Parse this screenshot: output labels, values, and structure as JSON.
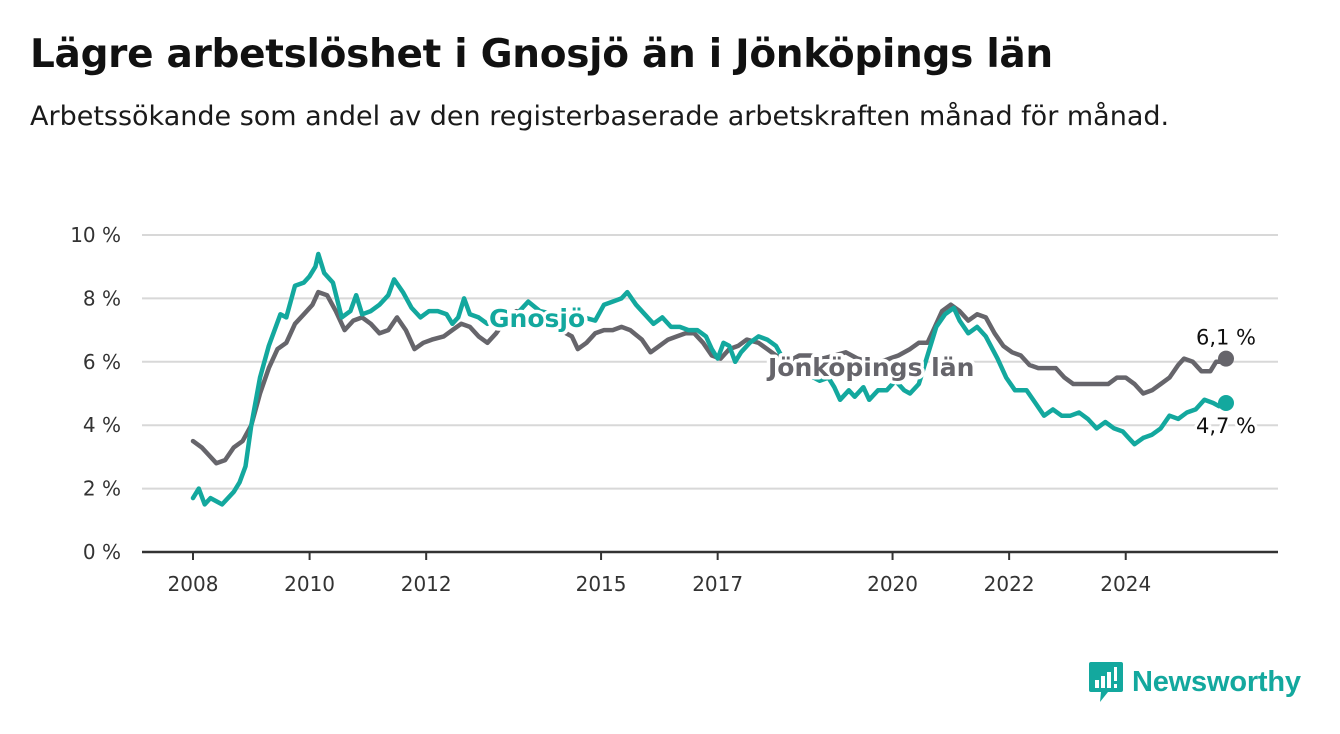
{
  "title": "Lägre arbetslöshet i Gnosjö än i Jönköpings län",
  "subtitle": "Arbetssökande som andel av den registerbaserade arbetskraften månad för månad.",
  "brand": {
    "name": "Newsworthy",
    "logo_icon": "bar-chart-exclamation-icon",
    "color": "#13a89e"
  },
  "chart_data": {
    "type": "line",
    "xlabel": "",
    "ylabel": "",
    "ylim": [
      0,
      10
    ],
    "xlim": [
      2008,
      2025.9
    ],
    "y_ticks": [
      0,
      2,
      4,
      6,
      8,
      10
    ],
    "y_tick_labels": [
      "0 %",
      "2 %",
      "4 %",
      "6 %",
      "8 %",
      "10 %"
    ],
    "x_ticks": [
      2008,
      2010,
      2012,
      2015,
      2017,
      2020,
      2022,
      2024
    ],
    "x_tick_labels": [
      "2008",
      "2010",
      "2012",
      "2015",
      "2017",
      "2020",
      "2022",
      "2024"
    ],
    "grid": true,
    "series": [
      {
        "name": "Gnosjö",
        "color": "#13a89e",
        "end_label": "4,7 %",
        "points": [
          [
            2008.0,
            1.7
          ],
          [
            2008.1,
            2.0
          ],
          [
            2008.2,
            1.5
          ],
          [
            2008.3,
            1.7
          ],
          [
            2008.5,
            1.5
          ],
          [
            2008.7,
            1.9
          ],
          [
            2008.8,
            2.2
          ],
          [
            2008.9,
            2.7
          ],
          [
            2009.0,
            4.0
          ],
          [
            2009.15,
            5.5
          ],
          [
            2009.3,
            6.5
          ],
          [
            2009.5,
            7.5
          ],
          [
            2009.6,
            7.4
          ],
          [
            2009.75,
            8.4
          ],
          [
            2009.9,
            8.5
          ],
          [
            2010.0,
            8.7
          ],
          [
            2010.1,
            9.0
          ],
          [
            2010.15,
            9.4
          ],
          [
            2010.25,
            8.8
          ],
          [
            2010.4,
            8.5
          ],
          [
            2010.55,
            7.4
          ],
          [
            2010.7,
            7.6
          ],
          [
            2010.8,
            8.1
          ],
          [
            2010.9,
            7.5
          ],
          [
            2011.05,
            7.6
          ],
          [
            2011.2,
            7.8
          ],
          [
            2011.35,
            8.1
          ],
          [
            2011.45,
            8.6
          ],
          [
            2011.6,
            8.2
          ],
          [
            2011.75,
            7.7
          ],
          [
            2011.9,
            7.4
          ],
          [
            2012.05,
            7.6
          ],
          [
            2012.2,
            7.6
          ],
          [
            2012.35,
            7.5
          ],
          [
            2012.45,
            7.2
          ],
          [
            2012.55,
            7.4
          ],
          [
            2012.65,
            8.0
          ],
          [
            2012.75,
            7.5
          ],
          [
            2012.9,
            7.4
          ],
          [
            2013.05,
            7.2
          ],
          [
            2013.2,
            7.3
          ],
          [
            2013.35,
            7.5
          ],
          [
            2013.55,
            7.5
          ],
          [
            2013.75,
            7.9
          ],
          [
            2013.95,
            7.6
          ],
          [
            2014.2,
            7.5
          ],
          [
            2014.5,
            7.3
          ],
          [
            2014.7,
            7.4
          ],
          [
            2014.9,
            7.3
          ],
          [
            2015.05,
            7.8
          ],
          [
            2015.2,
            7.9
          ],
          [
            2015.35,
            8.0
          ],
          [
            2015.45,
            8.2
          ],
          [
            2015.6,
            7.8
          ],
          [
            2015.75,
            7.5
          ],
          [
            2015.9,
            7.2
          ],
          [
            2016.05,
            7.4
          ],
          [
            2016.2,
            7.1
          ],
          [
            2016.35,
            7.1
          ],
          [
            2016.5,
            7.0
          ],
          [
            2016.65,
            7.0
          ],
          [
            2016.8,
            6.8
          ],
          [
            2016.9,
            6.4
          ],
          [
            2017.0,
            6.1
          ],
          [
            2017.1,
            6.6
          ],
          [
            2017.2,
            6.5
          ],
          [
            2017.3,
            6.0
          ],
          [
            2017.4,
            6.3
          ],
          [
            2017.55,
            6.6
          ],
          [
            2017.7,
            6.8
          ],
          [
            2017.85,
            6.7
          ],
          [
            2018.0,
            6.5
          ],
          [
            2018.15,
            6.0
          ],
          [
            2018.35,
            5.8
          ],
          [
            2018.55,
            5.6
          ],
          [
            2018.75,
            5.4
          ],
          [
            2018.9,
            5.5
          ],
          [
            2019.0,
            5.2
          ],
          [
            2019.1,
            4.8
          ],
          [
            2019.25,
            5.1
          ],
          [
            2019.35,
            4.9
          ],
          [
            2019.5,
            5.2
          ],
          [
            2019.6,
            4.8
          ],
          [
            2019.75,
            5.1
          ],
          [
            2019.9,
            5.1
          ],
          [
            2020.05,
            5.4
          ],
          [
            2020.2,
            5.1
          ],
          [
            2020.3,
            5.0
          ],
          [
            2020.45,
            5.3
          ],
          [
            2020.6,
            6.2
          ],
          [
            2020.75,
            7.1
          ],
          [
            2020.9,
            7.5
          ],
          [
            2021.05,
            7.7
          ],
          [
            2021.15,
            7.3
          ],
          [
            2021.3,
            6.9
          ],
          [
            2021.45,
            7.1
          ],
          [
            2021.6,
            6.8
          ],
          [
            2021.8,
            6.1
          ],
          [
            2021.95,
            5.5
          ],
          [
            2022.1,
            5.1
          ],
          [
            2022.3,
            5.1
          ],
          [
            2022.45,
            4.7
          ],
          [
            2022.6,
            4.3
          ],
          [
            2022.75,
            4.5
          ],
          [
            2022.9,
            4.3
          ],
          [
            2023.05,
            4.3
          ],
          [
            2023.2,
            4.4
          ],
          [
            2023.35,
            4.2
          ],
          [
            2023.5,
            3.9
          ],
          [
            2023.65,
            4.1
          ],
          [
            2023.8,
            3.9
          ],
          [
            2023.95,
            3.8
          ],
          [
            2024.05,
            3.6
          ],
          [
            2024.15,
            3.4
          ],
          [
            2024.3,
            3.6
          ],
          [
            2024.45,
            3.7
          ],
          [
            2024.6,
            3.9
          ],
          [
            2024.75,
            4.3
          ],
          [
            2024.9,
            4.2
          ],
          [
            2025.05,
            4.4
          ],
          [
            2025.2,
            4.5
          ],
          [
            2025.35,
            4.8
          ],
          [
            2025.5,
            4.7
          ],
          [
            2025.6,
            4.6
          ],
          [
            2025.72,
            4.7
          ]
        ]
      },
      {
        "name": "Jönköpings län",
        "color": "#66656b",
        "end_label": "6,1 %",
        "points": [
          [
            2008.0,
            3.5
          ],
          [
            2008.15,
            3.3
          ],
          [
            2008.3,
            3.0
          ],
          [
            2008.4,
            2.8
          ],
          [
            2008.55,
            2.9
          ],
          [
            2008.7,
            3.3
          ],
          [
            2008.85,
            3.5
          ],
          [
            2009.0,
            4.0
          ],
          [
            2009.15,
            5.0
          ],
          [
            2009.3,
            5.8
          ],
          [
            2009.45,
            6.4
          ],
          [
            2009.6,
            6.6
          ],
          [
            2009.75,
            7.2
          ],
          [
            2009.9,
            7.5
          ],
          [
            2010.05,
            7.8
          ],
          [
            2010.15,
            8.2
          ],
          [
            2010.3,
            8.1
          ],
          [
            2010.45,
            7.6
          ],
          [
            2010.6,
            7.0
          ],
          [
            2010.75,
            7.3
          ],
          [
            2010.9,
            7.4
          ],
          [
            2011.05,
            7.2
          ],
          [
            2011.2,
            6.9
          ],
          [
            2011.35,
            7.0
          ],
          [
            2011.5,
            7.4
          ],
          [
            2011.65,
            7.0
          ],
          [
            2011.8,
            6.4
          ],
          [
            2011.95,
            6.6
          ],
          [
            2012.1,
            6.7
          ],
          [
            2012.3,
            6.8
          ],
          [
            2012.45,
            7.0
          ],
          [
            2012.6,
            7.2
          ],
          [
            2012.75,
            7.1
          ],
          [
            2012.9,
            6.8
          ],
          [
            2013.05,
            6.6
          ],
          [
            2013.2,
            6.9
          ],
          [
            2013.35,
            7.3
          ],
          [
            2013.55,
            7.6
          ],
          [
            2013.75,
            7.4
          ],
          [
            2014.0,
            7.2
          ],
          [
            2014.3,
            7.0
          ],
          [
            2014.5,
            6.8
          ],
          [
            2014.6,
            6.4
          ],
          [
            2014.75,
            6.6
          ],
          [
            2014.9,
            6.9
          ],
          [
            2015.05,
            7.0
          ],
          [
            2015.2,
            7.0
          ],
          [
            2015.35,
            7.1
          ],
          [
            2015.5,
            7.0
          ],
          [
            2015.7,
            6.7
          ],
          [
            2015.85,
            6.3
          ],
          [
            2016.0,
            6.5
          ],
          [
            2016.15,
            6.7
          ],
          [
            2016.3,
            6.8
          ],
          [
            2016.45,
            6.9
          ],
          [
            2016.6,
            6.9
          ],
          [
            2016.75,
            6.6
          ],
          [
            2016.9,
            6.2
          ],
          [
            2017.05,
            6.1
          ],
          [
            2017.2,
            6.4
          ],
          [
            2017.35,
            6.5
          ],
          [
            2017.5,
            6.7
          ],
          [
            2017.7,
            6.6
          ],
          [
            2017.85,
            6.4
          ],
          [
            2018.0,
            6.2
          ],
          [
            2018.2,
            6.0
          ],
          [
            2018.4,
            6.2
          ],
          [
            2018.6,
            6.2
          ],
          [
            2018.8,
            6.1
          ],
          [
            2019.0,
            6.2
          ],
          [
            2019.2,
            6.3
          ],
          [
            2019.4,
            6.1
          ],
          [
            2019.6,
            6.0
          ],
          [
            2019.8,
            6.0
          ],
          [
            2019.95,
            6.1
          ],
          [
            2020.1,
            6.2
          ],
          [
            2020.3,
            6.4
          ],
          [
            2020.45,
            6.6
          ],
          [
            2020.6,
            6.6
          ],
          [
            2020.7,
            7.0
          ],
          [
            2020.85,
            7.6
          ],
          [
            2021.0,
            7.8
          ],
          [
            2021.15,
            7.6
          ],
          [
            2021.3,
            7.3
          ],
          [
            2021.45,
            7.5
          ],
          [
            2021.6,
            7.4
          ],
          [
            2021.75,
            6.9
          ],
          [
            2021.9,
            6.5
          ],
          [
            2022.05,
            6.3
          ],
          [
            2022.2,
            6.2
          ],
          [
            2022.35,
            5.9
          ],
          [
            2022.5,
            5.8
          ],
          [
            2022.65,
            5.8
          ],
          [
            2022.8,
            5.8
          ],
          [
            2022.95,
            5.5
          ],
          [
            2023.1,
            5.3
          ],
          [
            2023.3,
            5.3
          ],
          [
            2023.5,
            5.3
          ],
          [
            2023.7,
            5.3
          ],
          [
            2023.85,
            5.5
          ],
          [
            2024.0,
            5.5
          ],
          [
            2024.15,
            5.3
          ],
          [
            2024.3,
            5.0
          ],
          [
            2024.45,
            5.1
          ],
          [
            2024.6,
            5.3
          ],
          [
            2024.75,
            5.5
          ],
          [
            2024.9,
            5.9
          ],
          [
            2025.0,
            6.1
          ],
          [
            2025.15,
            6.0
          ],
          [
            2025.3,
            5.7
          ],
          [
            2025.45,
            5.7
          ],
          [
            2025.55,
            6.0
          ],
          [
            2025.65,
            6.0
          ],
          [
            2025.72,
            6.1
          ]
        ]
      }
    ]
  }
}
